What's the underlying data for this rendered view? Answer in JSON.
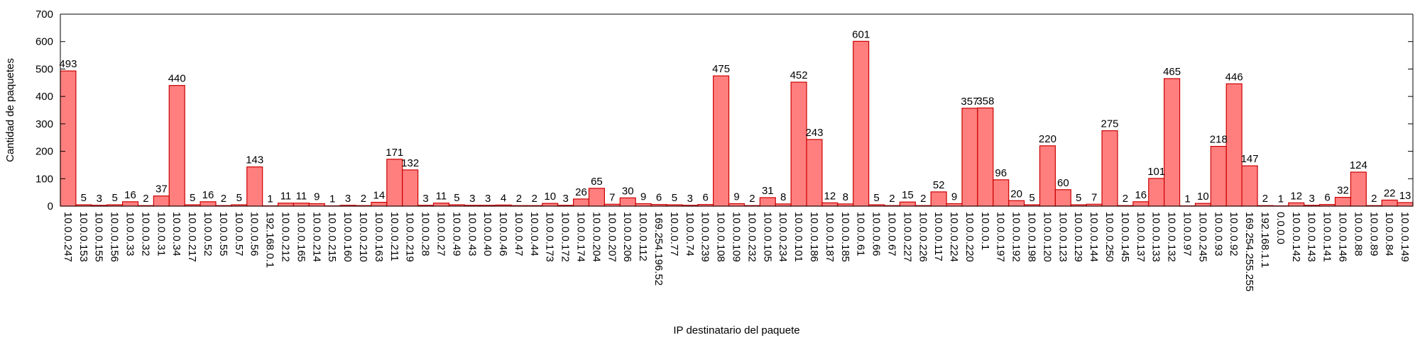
{
  "chart_data": {
    "type": "bar",
    "title": "",
    "xlabel": "IP destinatario del paquete",
    "ylabel": "Cantidad de paquetes",
    "ylim": [
      0,
      700
    ],
    "yticks": [
      0,
      100,
      200,
      300,
      400,
      500,
      600,
      700
    ],
    "grid": false,
    "legend": "none",
    "bar_color": "#ff7f7f",
    "bar_border_color": "#cc0000",
    "categories": [
      "10.0.0.247",
      "10.0.0.153",
      "10.0.0.155",
      "10.0.0.156",
      "10.0.0.33",
      "10.0.0.32",
      "10.0.0.31",
      "10.0.0.34",
      "10.0.0.217",
      "10.0.0.52",
      "10.0.0.55",
      "10.0.0.57",
      "10.0.0.56",
      "192.168.0.1",
      "10.0.0.212",
      "10.0.0.165",
      "10.0.0.214",
      "10.0.0.215",
      "10.0.0.160",
      "10.0.0.210",
      "10.0.0.163",
      "10.0.0.211",
      "10.0.0.219",
      "10.0.0.28",
      "10.0.0.27",
      "10.0.0.49",
      "10.0.0.43",
      "10.0.0.40",
      "10.0.0.46",
      "10.0.0.47",
      "10.0.0.44",
      "10.0.0.173",
      "10.0.0.172",
      "10.0.0.174",
      "10.0.0.204",
      "10.0.0.207",
      "10.0.0.206",
      "10.0.0.112",
      "169.254.196.52",
      "10.0.0.77",
      "10.0.0.74",
      "10.0.0.239",
      "10.0.0.108",
      "10.0.0.109",
      "10.0.0.232",
      "10.0.0.105",
      "10.0.0.234",
      "10.0.0.101",
      "10.0.0.186",
      "10.0.0.187",
      "10.0.0.185",
      "10.0.0.61",
      "10.0.0.66",
      "10.0.0.67",
      "10.0.0.227",
      "10.0.0.226",
      "10.0.0.117",
      "10.0.0.224",
      "10.0.0.220",
      "10.0.0.1",
      "10.0.0.197",
      "10.0.0.192",
      "10.0.0.198",
      "10.0.0.120",
      "10.0.0.123",
      "10.0.0.129",
      "10.0.0.144",
      "10.0.0.250",
      "10.0.0.145",
      "10.0.0.137",
      "10.0.0.133",
      "10.0.0.132",
      "10.0.0.97",
      "10.0.0.245",
      "10.0.0.93",
      "10.0.0.92",
      "169.254.255.255",
      "192.168.1.1",
      "0.0.0.0",
      "10.0.0.142",
      "10.0.0.143",
      "10.0.0.141",
      "10.0.0.146",
      "10.0.0.88",
      "10.0.0.89",
      "10.0.0.84",
      "10.0.0.149"
    ],
    "values": [
      493,
      5,
      3,
      5,
      16,
      2,
      37,
      440,
      5,
      16,
      2,
      5,
      143,
      1,
      11,
      11,
      9,
      1,
      3,
      2,
      14,
      171,
      132,
      3,
      11,
      5,
      3,
      3,
      4,
      2,
      2,
      10,
      3,
      26,
      65,
      7,
      30,
      9,
      6,
      5,
      3,
      6,
      475,
      9,
      2,
      31,
      8,
      452,
      243,
      12,
      8,
      601,
      5,
      2,
      15,
      2,
      52,
      9,
      357,
      358,
      96,
      20,
      5,
      220,
      60,
      5,
      7,
      275,
      2,
      16,
      101,
      465,
      1,
      10,
      218,
      446,
      147,
      2,
      1,
      12,
      3,
      6,
      32,
      124,
      2,
      22,
      13
    ]
  }
}
